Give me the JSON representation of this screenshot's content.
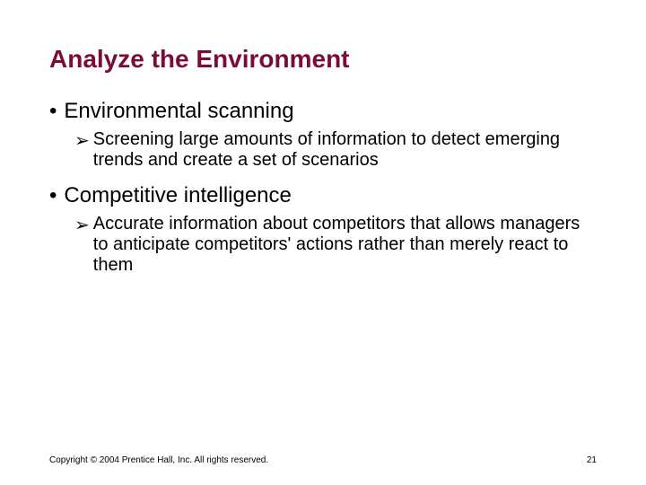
{
  "title": {
    "text": "Analyze the Environment",
    "color": "#7a0b3a",
    "fontsize": 28
  },
  "bullets": [
    {
      "level": 1,
      "marker": "•",
      "text": "Environmental scanning",
      "fontsize": 24,
      "color": "#000000"
    },
    {
      "level": 2,
      "marker": "➢",
      "text": "Screening large amounts of information to detect emerging trends and create a set of scenarios",
      "fontsize": 20,
      "color": "#000000"
    },
    {
      "level": 1,
      "marker": "•",
      "text": "Competitive intelligence",
      "fontsize": 24,
      "color": "#000000"
    },
    {
      "level": 2,
      "marker": "➢",
      "text": "Accurate information about competitors that allows managers to anticipate competitors' actions rather than merely react to them",
      "fontsize": 20,
      "color": "#000000"
    }
  ],
  "footer": {
    "copyright": "Copyright © 2004 Prentice Hall, Inc. All rights reserved.",
    "page": "21",
    "fontsize": 10,
    "color": "#000000"
  },
  "background_color": "#ffffff"
}
